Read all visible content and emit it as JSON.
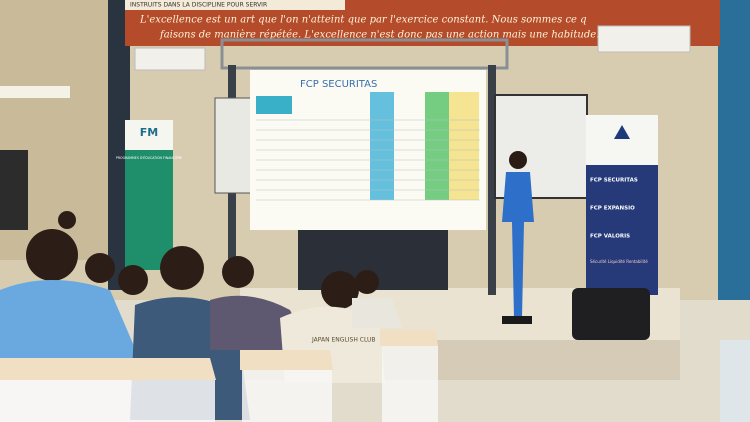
{
  "top_banner": {
    "header": "INSTRUITS DANS LA DISCIPLINE POUR SERVIR",
    "quote_line_1": "L'excellence est un art que l'on n'atteint que par l'exercice constant. Nous sommes ce q",
    "quote_line_2": "faisons de manière répétée. L'excellence n'est donc pas une action mais une habitude. Aristote"
  },
  "screen": {
    "title": "FCP SECURITAS"
  },
  "left_banner": {
    "logo": "FM",
    "title": "PROGRAMMES D'ÉDUCATION FINANCIÈRE"
  },
  "right_banner": {
    "items": [
      "FCP SECURITAS",
      "FCP EXPANSIO",
      "FCP VALORIS"
    ],
    "footer": "Sécurité Liquidité Rentabilité"
  },
  "shirt": {
    "text": "JAPAN ENGLISH CLUB"
  }
}
